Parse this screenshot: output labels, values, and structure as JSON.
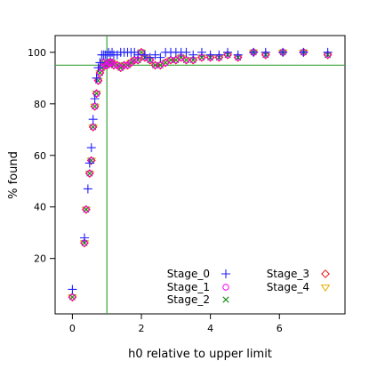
{
  "chart_data": {
    "type": "scatter",
    "title": "",
    "xlabel": "h0 relative to upper limit",
    "ylabel": "% found",
    "xlim": [
      -0.5,
      7.9
    ],
    "ylim": [
      -1.5,
      106.5
    ],
    "x_ticks": [
      0,
      2,
      4,
      6
    ],
    "y_ticks": [
      20,
      40,
      60,
      80,
      100
    ],
    "x_tick_labels": [
      "0",
      "2",
      "4",
      "6"
    ],
    "y_tick_labels": [
      "20",
      "40",
      "60",
      "80",
      "100"
    ],
    "reference_lines": {
      "vertical_x": 1.0,
      "horizontal_y": 95,
      "color": "#3aa23a"
    },
    "grid": false,
    "legend_position": "bottom-right",
    "series": [
      {
        "name": "Stage_0",
        "marker": "plus",
        "color": "#1f1fff",
        "x": [
          0.0,
          0.35,
          0.45,
          0.5,
          0.55,
          0.6,
          0.65,
          0.7,
          0.75,
          0.8,
          0.85,
          0.9,
          0.95,
          1.0,
          1.05,
          1.1,
          1.15,
          1.2,
          1.3,
          1.4,
          1.5,
          1.6,
          1.7,
          1.8,
          1.9,
          2.1,
          2.25,
          2.4,
          2.55,
          2.7,
          2.85,
          3.0,
          3.15,
          3.3,
          3.5,
          3.75,
          4.0,
          4.25,
          4.5,
          4.8,
          5.25,
          5.6,
          6.1,
          6.7,
          7.4
        ],
        "y": [
          8,
          28,
          47,
          57,
          63,
          74,
          82,
          90,
          94,
          96,
          99,
          99,
          99,
          99,
          100,
          99,
          100,
          99,
          99,
          100,
          100,
          100,
          100,
          100,
          99,
          99,
          98,
          99,
          98,
          100,
          100,
          100,
          100,
          100,
          99,
          100,
          99,
          99,
          100,
          99,
          100,
          100,
          100,
          100,
          100
        ]
      },
      {
        "name": "Stage_1",
        "marker": "circle",
        "color": "#ff00ff",
        "x": [
          0.0,
          0.35,
          0.4,
          0.5,
          0.55,
          0.6,
          0.65,
          0.7,
          0.75,
          0.8,
          0.85,
          0.9,
          0.95,
          1.0,
          1.05,
          1.1,
          1.15,
          1.2,
          1.3,
          1.4,
          1.5,
          1.6,
          1.7,
          1.8,
          1.9,
          2.0,
          2.1,
          2.25,
          2.4,
          2.55,
          2.7,
          2.85,
          3.0,
          3.15,
          3.3,
          3.5,
          3.75,
          4.0,
          4.25,
          4.5,
          4.8,
          5.25,
          5.6,
          6.1,
          6.7,
          7.4
        ],
        "y": [
          5,
          26,
          39,
          53,
          58,
          71,
          79,
          84,
          89,
          92,
          94,
          96,
          95,
          95,
          96,
          96,
          96,
          95,
          95,
          94,
          95,
          95,
          96,
          97,
          97,
          100,
          98,
          97,
          95,
          95,
          96,
          97,
          97,
          98,
          97,
          97,
          98,
          98,
          98,
          99,
          98,
          100,
          99,
          100,
          100,
          99
        ]
      },
      {
        "name": "Stage_2",
        "marker": "x",
        "color": "#118811",
        "x": [
          0.0,
          0.35,
          0.4,
          0.5,
          0.55,
          0.6,
          0.65,
          0.7,
          0.75,
          0.8,
          0.85,
          0.9,
          0.95,
          1.0,
          1.05,
          1.1,
          1.15,
          1.2,
          1.3,
          1.4,
          1.5,
          1.6,
          1.7,
          1.8,
          1.9,
          2.0,
          2.1,
          2.25,
          2.4,
          2.55,
          2.7,
          2.85,
          3.0,
          3.15,
          3.3,
          3.5,
          3.75,
          4.0,
          4.25,
          4.5,
          4.8,
          5.25,
          5.6,
          6.1,
          6.7,
          7.4
        ],
        "y": [
          5,
          26,
          39,
          53,
          58,
          71,
          79,
          84,
          89,
          92,
          94,
          96,
          95,
          95,
          96,
          96,
          96,
          95,
          95,
          94,
          95,
          95,
          96,
          97,
          97,
          100,
          98,
          97,
          95,
          95,
          96,
          97,
          97,
          98,
          97,
          97,
          98,
          98,
          98,
          99,
          98,
          100,
          99,
          100,
          100,
          99
        ]
      },
      {
        "name": "Stage_3",
        "marker": "diamond",
        "color": "#ee1111",
        "x": [
          0.0,
          0.35,
          0.4,
          0.5,
          0.55,
          0.6,
          0.65,
          0.7,
          0.75,
          0.8,
          0.85,
          0.9,
          0.95,
          1.0,
          1.05,
          1.1,
          1.15,
          1.2,
          1.3,
          1.4,
          1.5,
          1.6,
          1.7,
          1.8,
          1.9,
          2.0,
          2.1,
          2.25,
          2.4,
          2.55,
          2.7,
          2.85,
          3.0,
          3.15,
          3.3,
          3.5,
          3.75,
          4.0,
          4.25,
          4.5,
          4.8,
          5.25,
          5.6,
          6.1,
          6.7,
          7.4
        ],
        "y": [
          5,
          26,
          39,
          53,
          58,
          71,
          79,
          84,
          89,
          92,
          94,
          96,
          95,
          95,
          96,
          96,
          96,
          95,
          95,
          94,
          95,
          95,
          96,
          97,
          97,
          100,
          98,
          97,
          95,
          95,
          96,
          97,
          97,
          98,
          97,
          97,
          98,
          98,
          98,
          99,
          98,
          100,
          99,
          100,
          100,
          99
        ]
      },
      {
        "name": "Stage_4",
        "marker": "triangle-down",
        "color": "#e8b000",
        "x": [
          0.0,
          0.35,
          0.4,
          0.5,
          0.55,
          0.6,
          0.65,
          0.7,
          0.75,
          0.8,
          0.85,
          0.9,
          0.95,
          1.0,
          1.05,
          1.1,
          1.15,
          1.2,
          1.3,
          1.4,
          1.5,
          1.6,
          1.7,
          1.8,
          1.9,
          2.0,
          2.1,
          2.25,
          2.4,
          2.55,
          2.7,
          2.85,
          3.0,
          3.15,
          3.3,
          3.5,
          3.75,
          4.0,
          4.25,
          4.5,
          4.8,
          5.25,
          5.6,
          6.1,
          6.7,
          7.4
        ],
        "y": [
          5,
          26,
          39,
          53,
          58,
          71,
          79,
          84,
          89,
          92,
          94,
          96,
          95,
          95,
          96,
          96,
          96,
          95,
          95,
          94,
          95,
          95,
          96,
          97,
          97,
          100,
          98,
          97,
          95,
          95,
          96,
          97,
          97,
          98,
          97,
          97,
          98,
          98,
          98,
          99,
          98,
          100,
          99,
          100,
          100,
          99
        ]
      }
    ]
  }
}
